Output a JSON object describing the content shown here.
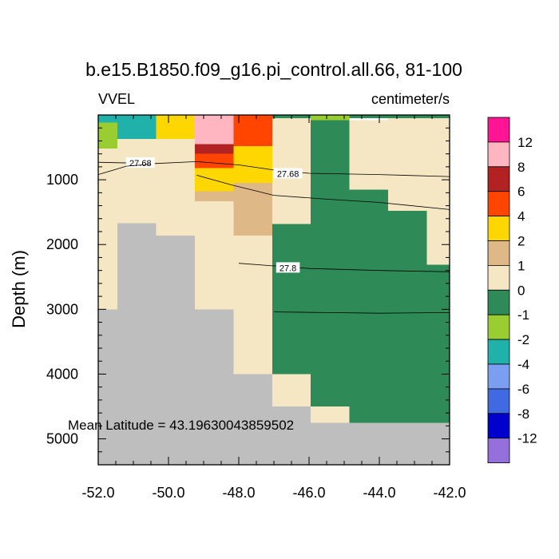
{
  "title": "b.e15.B1850.f09_g16.pi_control.all.66, 81-100",
  "left_label": "VVEL",
  "right_label": "centimeter/s",
  "annotation": "Mean Latitude = 43.19630043859502",
  "chart_data": {
    "type": "heatmap",
    "ylabel": "Depth (m)",
    "xlim": [
      -52.0,
      -42.0
    ],
    "ylim": [
      5400,
      0
    ],
    "x_tick_labels": [
      {
        "value": -52.0,
        "label": "-52.0"
      },
      {
        "value": -50.0,
        "label": "-50.0"
      },
      {
        "value": -48.0,
        "label": "-48.0"
      },
      {
        "value": -46.0,
        "label": "-46.0"
      },
      {
        "value": -44.0,
        "label": "-44.0"
      },
      {
        "value": -42.0,
        "label": "-42.0"
      }
    ],
    "y_tick_labels": [
      {
        "value": 1000,
        "label": "1000"
      },
      {
        "value": 2000,
        "label": "2000"
      },
      {
        "value": 3000,
        "label": "3000"
      },
      {
        "value": 4000,
        "label": "4000"
      },
      {
        "value": 5000,
        "label": "5000"
      }
    ],
    "land_color": "#bebebe",
    "colorbar": {
      "labels": [
        "12",
        "8",
        "6",
        "4",
        "2",
        "1",
        "0",
        "-1",
        "-2",
        "-4",
        "-6",
        "-8",
        "-12"
      ],
      "colors": [
        "#ff1493",
        "#ffb6c1",
        "#b22222",
        "#ff4500",
        "#ffd700",
        "#deb887",
        "#f5e6c4",
        "#2e8b57",
        "#9acd32",
        "#20b2aa",
        "#7b9ef0",
        "#4169e1",
        "#0000cd",
        "#9370db"
      ]
    },
    "cells": [
      {
        "x": [
          -52.0,
          -51.45
        ],
        "depth": [
          0,
          120
        ],
        "color": "#20b2aa"
      },
      {
        "x": [
          -51.45,
          -50.35
        ],
        "depth": [
          0,
          370
        ],
        "color": "#20b2aa"
      },
      {
        "x": [
          -50.35,
          -49.25
        ],
        "depth": [
          0,
          370
        ],
        "color": "#ffd700"
      },
      {
        "x": [
          -49.25,
          -48.15
        ],
        "depth": [
          0,
          450
        ],
        "color": "#ffb6c1"
      },
      {
        "x": [
          -48.15,
          -47.05
        ],
        "depth": [
          0,
          480
        ],
        "color": "#ff4500"
      },
      {
        "x": [
          -47.05,
          -45.95
        ],
        "depth": [
          0,
          50
        ],
        "color": "#2e8b57"
      },
      {
        "x": [
          -45.95,
          -44.85
        ],
        "depth": [
          0,
          80
        ],
        "color": "#9acd32"
      },
      {
        "x": [
          -44.85,
          -42.0
        ],
        "depth": [
          0,
          50
        ],
        "color": "#2e8b57"
      },
      {
        "x": [
          -52.0,
          -51.45
        ],
        "depth": [
          120,
          3000
        ],
        "color": "#f5e6c4"
      },
      {
        "x": [
          -51.45,
          -50.35
        ],
        "depth": [
          370,
          1670
        ],
        "color": "#f5e6c4"
      },
      {
        "x": [
          -50.35,
          -49.25
        ],
        "depth": [
          370,
          1860
        ],
        "color": "#f5e6c4"
      },
      {
        "x": [
          -49.25,
          -48.15
        ],
        "depth": [
          1330,
          3000
        ],
        "color": "#f5e6c4"
      },
      {
        "x": [
          -48.15,
          -47.05
        ],
        "depth": [
          1860,
          4000
        ],
        "color": "#f5e6c4"
      },
      {
        "x": [
          -47.05,
          -45.95
        ],
        "depth": [
          50,
          1680
        ],
        "color": "#f5e6c4"
      },
      {
        "x": [
          -47.05,
          -45.95
        ],
        "depth": [
          4000,
          4500
        ],
        "color": "#f5e6c4"
      },
      {
        "x": [
          -45.95,
          -44.85
        ],
        "depth": [
          4500,
          4750
        ],
        "color": "#f5e6c4"
      },
      {
        "x": [
          -44.85,
          -43.75
        ],
        "depth": [
          80,
          1150
        ],
        "color": "#f5e6c4"
      },
      {
        "x": [
          -43.75,
          -42.65
        ],
        "depth": [
          50,
          1480
        ],
        "color": "#f5e6c4"
      },
      {
        "x": [
          -42.65,
          -42.0
        ],
        "depth": [
          50,
          2310
        ],
        "color": "#f5e6c4"
      },
      {
        "x": [
          -45.95,
          -44.85
        ],
        "depth": [
          80,
          4500
        ],
        "color": "#2e8b57"
      },
      {
        "x": [
          -47.05,
          -45.95
        ],
        "depth": [
          1680,
          4000
        ],
        "color": "#2e8b57"
      },
      {
        "x": [
          -44.85,
          -43.75
        ],
        "depth": [
          1150,
          4750
        ],
        "color": "#2e8b57"
      },
      {
        "x": [
          -43.75,
          -42.65
        ],
        "depth": [
          1480,
          4750
        ],
        "color": "#2e8b57"
      },
      {
        "x": [
          -42.65,
          -42.0
        ],
        "depth": [
          2310,
          4750
        ],
        "color": "#2e8b57"
      },
      {
        "x": [
          -52.0,
          -51.45
        ],
        "depth": [
          120,
          520
        ],
        "color": "#9acd32"
      },
      {
        "x": [
          -49.25,
          -48.15
        ],
        "depth": [
          450,
          600
        ],
        "color": "#b22222"
      },
      {
        "x": [
          -49.25,
          -48.15
        ],
        "depth": [
          600,
          820
        ],
        "color": "#ff4500"
      },
      {
        "x": [
          -49.25,
          -48.15
        ],
        "depth": [
          820,
          1180
        ],
        "color": "#ffd700"
      },
      {
        "x": [
          -49.25,
          -48.15
        ],
        "depth": [
          1180,
          1330
        ],
        "color": "#deb887"
      },
      {
        "x": [
          -48.15,
          -47.05
        ],
        "depth": [
          480,
          1050
        ],
        "color": "#ffd700"
      },
      {
        "x": [
          -48.15,
          -47.05
        ],
        "depth": [
          1050,
          1860
        ],
        "color": "#deb887"
      }
    ],
    "land": [
      {
        "x": [
          -52.0,
          -51.45
        ],
        "depth": [
          3000,
          5400
        ]
      },
      {
        "x": [
          -51.45,
          -50.35
        ],
        "depth": [
          1670,
          5400
        ]
      },
      {
        "x": [
          -50.35,
          -49.25
        ],
        "depth": [
          1860,
          5400
        ]
      },
      {
        "x": [
          -49.25,
          -48.15
        ],
        "depth": [
          3000,
          5400
        ]
      },
      {
        "x": [
          -48.15,
          -47.05
        ],
        "depth": [
          4000,
          5400
        ]
      },
      {
        "x": [
          -47.05,
          -45.95
        ],
        "depth": [
          4500,
          5400
        ]
      },
      {
        "x": [
          -45.95,
          -44.85
        ],
        "depth": [
          4750,
          5400
        ]
      },
      {
        "x": [
          -44.85,
          -42.0
        ],
        "depth": [
          4750,
          5400
        ]
      }
    ],
    "contours": [
      {
        "label": "27.68",
        "label_at": [
          -50.8,
          740
        ],
        "points": [
          [
            -52.0,
            730
          ],
          [
            -50.4,
            750
          ],
          [
            -49.2,
            720
          ],
          [
            -48.0,
            770
          ],
          [
            -47.0,
            850
          ],
          [
            -46.0,
            900
          ],
          [
            -44.0,
            920
          ],
          [
            -42.0,
            950
          ]
        ]
      },
      {
        "label": "27.68",
        "label_at": [
          -46.6,
          905
        ],
        "points": [
          [
            -52.0,
            920
          ],
          [
            -51.2,
            790
          ],
          [
            -50.5,
            760
          ]
        ]
      },
      {
        "label": "",
        "points": [
          [
            -49.2,
            930
          ],
          [
            -48.2,
            1080
          ],
          [
            -47.0,
            1240
          ],
          [
            -45.5,
            1300
          ],
          [
            -44.0,
            1350
          ],
          [
            -42.0,
            1460
          ]
        ]
      },
      {
        "label": "27.8",
        "label_at": [
          -46.6,
          2360
        ],
        "points": [
          [
            -48.0,
            2290
          ],
          [
            -47.0,
            2330
          ],
          [
            -46.0,
            2370
          ],
          [
            -44.0,
            2400
          ],
          [
            -42.0,
            2420
          ]
        ]
      },
      {
        "label": "",
        "points": [
          [
            -47.0,
            3040
          ],
          [
            -45.5,
            3050
          ],
          [
            -44.0,
            3060
          ],
          [
            -42.0,
            3050
          ]
        ]
      }
    ]
  }
}
